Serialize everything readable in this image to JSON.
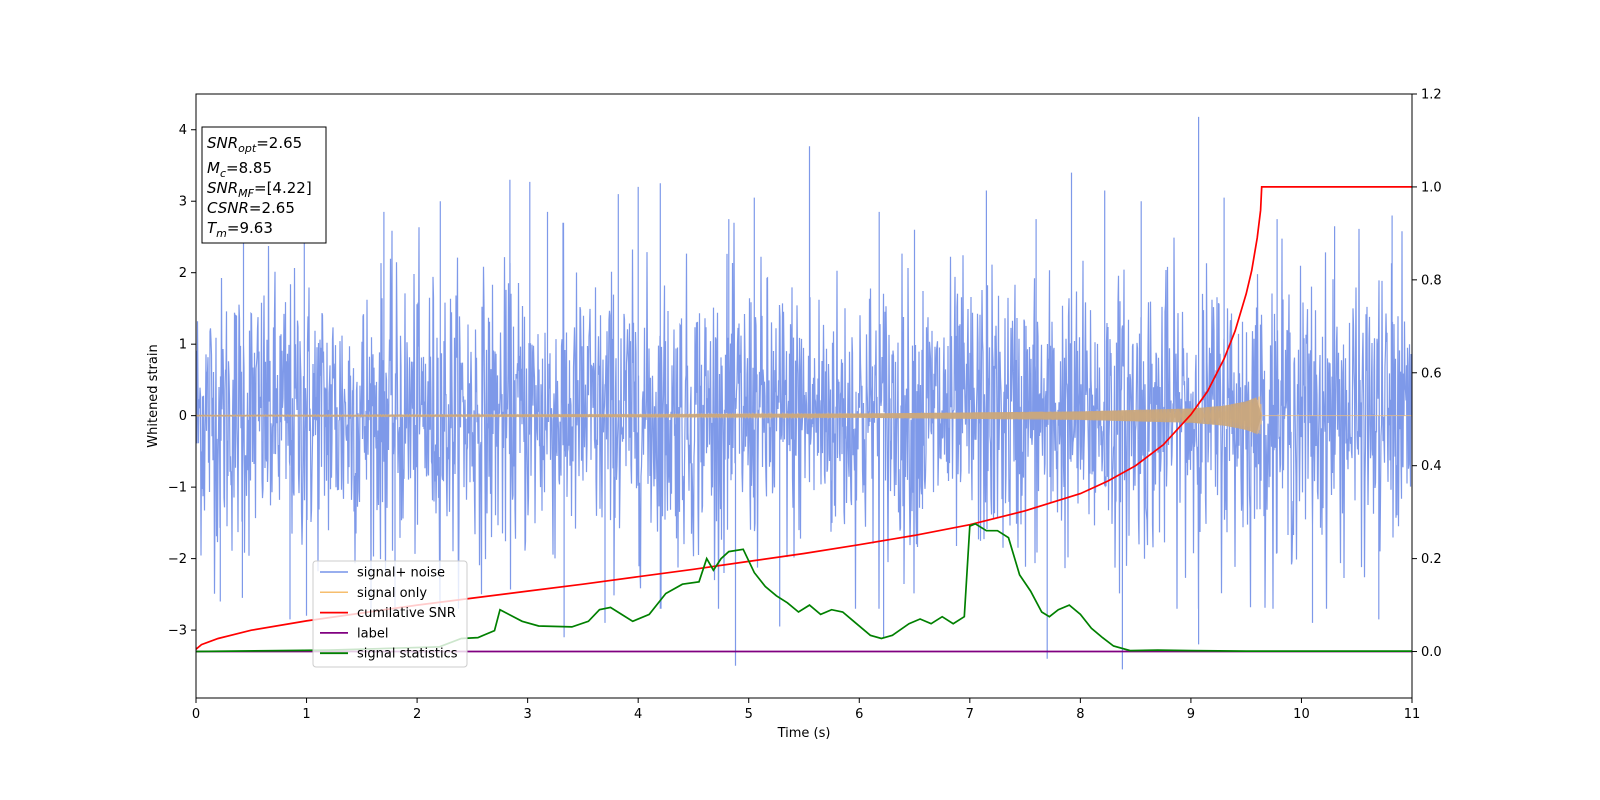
{
  "chart_data": {
    "type": "line",
    "xlabel": "Time (s)",
    "ylabel": "Whitened strain",
    "xlim": [
      0,
      11
    ],
    "ylim_left": [
      -3.95,
      4.5
    ],
    "ylim_right": [
      -0.1,
      1.2
    ],
    "x_ticks": [
      0,
      1,
      2,
      3,
      4,
      5,
      6,
      7,
      8,
      9,
      10,
      11
    ],
    "y_ticks_left": [
      -3,
      -2,
      -1,
      0,
      1,
      2,
      3,
      4
    ],
    "y_tick_labels_left": [
      "−3",
      "−2",
      "−1",
      "0",
      "1",
      "2",
      "3",
      "4"
    ],
    "y_ticks_right": [
      0.0,
      0.2,
      0.4,
      0.6,
      0.8,
      1.0,
      1.2
    ],
    "y_tick_labels_right": [
      "0.0",
      "0.2",
      "0.4",
      "0.6",
      "0.8",
      "1.0",
      "1.2"
    ],
    "grid": false,
    "legend_position": "lower-left",
    "annotation": {
      "lines": [
        {
          "base": "SNR",
          "sub": "opt",
          "value": "=2.65"
        },
        {
          "base": "M",
          "sub": "c",
          "value": "=8.85"
        },
        {
          "base": "SNR",
          "sub": "MF",
          "value": "=[4.22]"
        },
        {
          "base": "CSNR",
          "sub": "",
          "value": "=2.65"
        },
        {
          "base": "T",
          "sub": "m",
          "value": "=9.63"
        }
      ]
    },
    "noise_stats": {
      "std": 0.95,
      "strong_spikes": [
        [
          0.43,
          2.9
        ],
        [
          0.98,
          2.7
        ],
        [
          1.7,
          2.85
        ],
        [
          2.21,
          3.0
        ],
        [
          2.84,
          3.3
        ],
        [
          3.02,
          3.27
        ],
        [
          3.18,
          2.85
        ],
        [
          3.32,
          2.7
        ],
        [
          3.82,
          3.1
        ],
        [
          4.0,
          3.2
        ],
        [
          4.2,
          3.25
        ],
        [
          4.82,
          2.75
        ],
        [
          5.05,
          3.05
        ],
        [
          5.55,
          3.77
        ],
        [
          6.18,
          2.85
        ],
        [
          6.5,
          2.6
        ],
        [
          7.15,
          3.15
        ],
        [
          7.6,
          2.75
        ],
        [
          7.92,
          3.4
        ],
        [
          8.22,
          3.15
        ],
        [
          8.55,
          3.0
        ],
        [
          9.07,
          4.18
        ],
        [
          9.3,
          3.05
        ],
        [
          9.78,
          2.75
        ],
        [
          10.3,
          2.65
        ],
        [
          10.82,
          2.8
        ],
        [
          0.22,
          -2.6
        ],
        [
          0.42,
          -2.55
        ],
        [
          0.85,
          -2.85
        ],
        [
          1.0,
          -2.8
        ],
        [
          1.8,
          -2.7
        ],
        [
          3.33,
          -3.1
        ],
        [
          3.7,
          -2.9
        ],
        [
          4.2,
          -2.7
        ],
        [
          4.88,
          -3.5
        ],
        [
          5.28,
          -2.95
        ],
        [
          6.22,
          -3.1
        ],
        [
          7.7,
          -3.4
        ],
        [
          8.38,
          -3.55
        ],
        [
          9.07,
          -3.2
        ],
        [
          10.1,
          -2.9
        ],
        [
          10.7,
          -2.85
        ]
      ]
    },
    "series": [
      {
        "name": "signal+ noise",
        "color": "#7793e8",
        "axis": "left",
        "description_kind": "noise"
      },
      {
        "name": "signal only",
        "color": "#f6be6e",
        "axis": "left",
        "envelope": {
          "x": [
            0,
            4,
            6,
            8,
            9,
            9.3,
            9.5,
            9.6,
            9.63,
            9.64
          ],
          "amp": [
            0.01,
            0.02,
            0.03,
            0.06,
            0.1,
            0.14,
            0.2,
            0.26,
            0.28,
            0
          ]
        }
      },
      {
        "name": "cumilative SNR",
        "color": "#ff0000",
        "axis": "right",
        "x": [
          0,
          0.05,
          0.2,
          0.5,
          1,
          1.5,
          2,
          2.5,
          3,
          3.5,
          4,
          4.5,
          5,
          5.5,
          6,
          6.5,
          7,
          7.5,
          8,
          8.25,
          8.5,
          8.75,
          9,
          9.15,
          9.3,
          9.4,
          9.5,
          9.55,
          9.6,
          9.63,
          9.64,
          11
        ],
        "values": [
          0.005,
          0.015,
          0.028,
          0.046,
          0.066,
          0.083,
          0.1,
          0.115,
          0.13,
          0.145,
          0.161,
          0.177,
          0.194,
          0.211,
          0.23,
          0.25,
          0.273,
          0.303,
          0.34,
          0.367,
          0.4,
          0.445,
          0.51,
          0.56,
          0.63,
          0.69,
          0.77,
          0.82,
          0.89,
          0.95,
          1.0,
          1.0
        ]
      },
      {
        "name": "label",
        "color": "#800080",
        "axis": "right",
        "x": [
          0,
          11
        ],
        "values": [
          0,
          0
        ]
      },
      {
        "name": "signal statistics",
        "color": "#008000",
        "axis": "right",
        "x": [
          0,
          1.2,
          2.2,
          2.4,
          2.55,
          2.7,
          2.75,
          2.95,
          3.1,
          3.4,
          3.55,
          3.65,
          3.75,
          3.85,
          3.95,
          4.1,
          4.25,
          4.4,
          4.55,
          4.62,
          4.68,
          4.75,
          4.82,
          4.95,
          5.05,
          5.15,
          5.25,
          5.35,
          5.45,
          5.55,
          5.65,
          5.75,
          5.85,
          5.95,
          6.1,
          6.2,
          6.3,
          6.45,
          6.55,
          6.65,
          6.75,
          6.85,
          6.95,
          7.0,
          7.05,
          7.15,
          7.25,
          7.35,
          7.45,
          7.55,
          7.65,
          7.72,
          7.8,
          7.9,
          8.0,
          8.1,
          8.2,
          8.3,
          8.45,
          8.7,
          9.0,
          9.5,
          10.5,
          11
        ],
        "values": [
          0.0,
          0.003,
          0.01,
          0.028,
          0.03,
          0.045,
          0.09,
          0.065,
          0.055,
          0.053,
          0.065,
          0.09,
          0.095,
          0.08,
          0.065,
          0.08,
          0.125,
          0.145,
          0.15,
          0.2,
          0.175,
          0.2,
          0.215,
          0.22,
          0.17,
          0.14,
          0.12,
          0.105,
          0.085,
          0.1,
          0.08,
          0.09,
          0.085,
          0.065,
          0.035,
          0.028,
          0.035,
          0.06,
          0.07,
          0.06,
          0.075,
          0.06,
          0.075,
          0.27,
          0.275,
          0.26,
          0.26,
          0.245,
          0.165,
          0.13,
          0.085,
          0.075,
          0.09,
          0.1,
          0.08,
          0.05,
          0.03,
          0.012,
          0.002,
          0.003,
          0.002,
          0.001,
          0.001,
          0.001
        ]
      }
    ]
  }
}
